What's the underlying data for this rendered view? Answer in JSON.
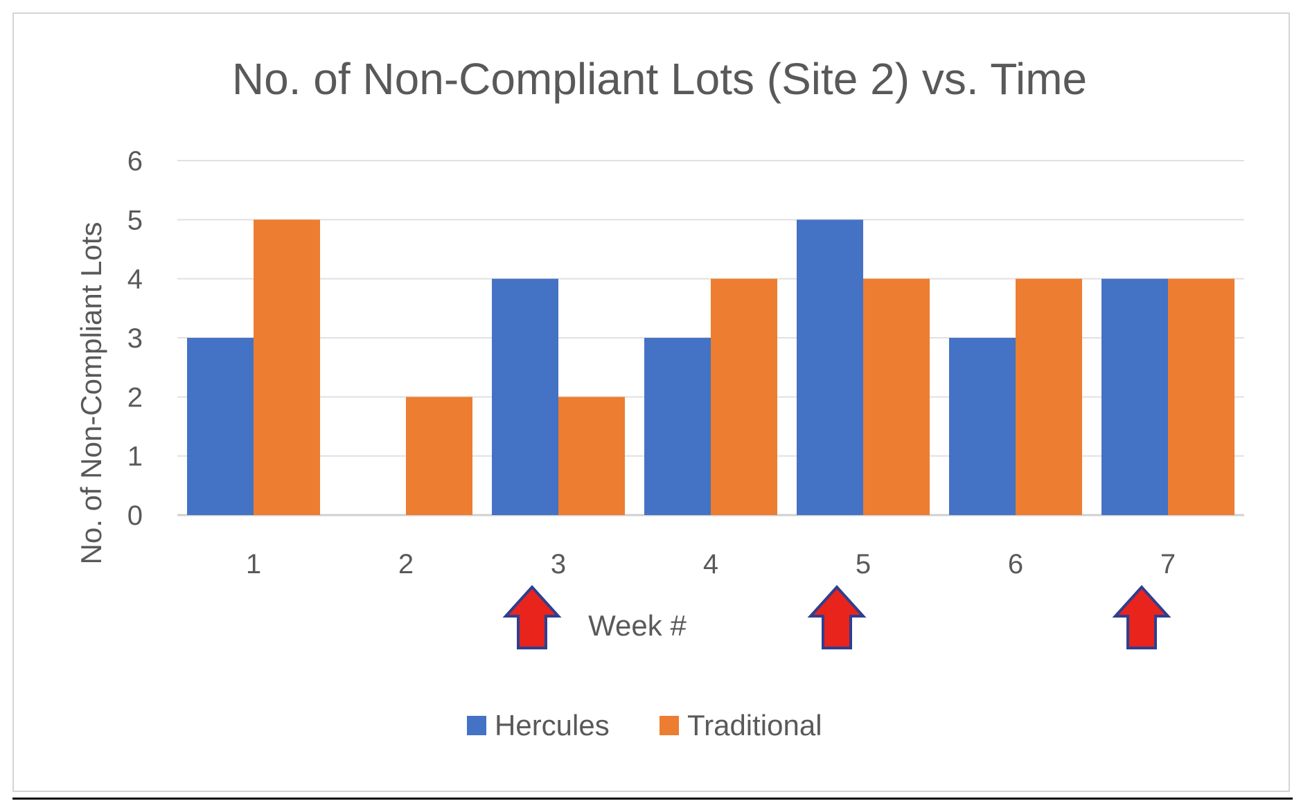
{
  "chart_data": {
    "type": "bar",
    "title": "No. of Non-Compliant Lots (Site 2) vs. Time",
    "xlabel": "Week #",
    "ylabel": "No. of Non-Compliant Lots",
    "categories": [
      "1",
      "2",
      "3",
      "4",
      "5",
      "6",
      "7"
    ],
    "series": [
      {
        "name": "Hercules",
        "color": "#4472c4",
        "values": [
          3,
          0,
          4,
          3,
          5,
          3,
          4
        ]
      },
      {
        "name": "Traditional",
        "color": "#ed7d31",
        "values": [
          5,
          2,
          2,
          4,
          4,
          4,
          4
        ]
      }
    ],
    "ylim": [
      0,
      6
    ],
    "yticks": [
      0,
      1,
      2,
      3,
      4,
      5,
      6
    ],
    "grid": true,
    "legend": "bottom",
    "annotations": [
      {
        "type": "arrow-up",
        "category": "3",
        "color": "#e8241d"
      },
      {
        "type": "arrow-up",
        "category": "5",
        "color": "#e8241d"
      },
      {
        "type": "arrow-up",
        "category": "7",
        "color": "#e8241d"
      }
    ]
  }
}
